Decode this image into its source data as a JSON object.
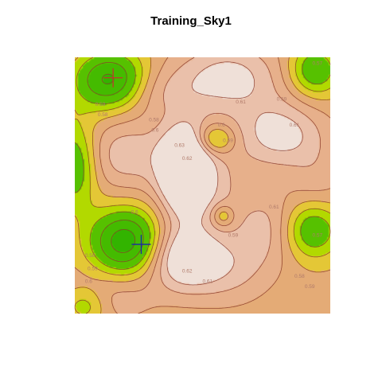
{
  "chart_data": {
    "type": "heatmap",
    "title": "Training_Sky1",
    "subtype": "filled contour map with contour lines",
    "x_range": [
      0,
      1
    ],
    "y_range": [
      0,
      1
    ],
    "color_scale": {
      "low": "#32b400",
      "mid": "#e6e600",
      "high_1": "#e2a86b",
      "high_2": "#eab59b",
      "max": "#f2f2f2",
      "contour_line_color": "#8b3a2a"
    },
    "value_range": [
      0.55,
      0.63
    ],
    "contour_labels": [
      {
        "label": "0.57",
        "x": 0.93,
        "y": 0.97
      },
      {
        "label": "0.59",
        "x": 0.79,
        "y": 0.83
      },
      {
        "label": "0.61",
        "x": 0.63,
        "y": 0.82
      },
      {
        "label": "0.61",
        "x": 0.84,
        "y": 0.73
      },
      {
        "label": "0.6",
        "x": 0.56,
        "y": 0.73
      },
      {
        "label": "0.59",
        "x": 0.58,
        "y": 0.67
      },
      {
        "label": "0.63",
        "x": 0.39,
        "y": 0.65
      },
      {
        "label": "0.62",
        "x": 0.42,
        "y": 0.6
      },
      {
        "label": "0.59",
        "x": 0.08,
        "y": 0.81
      },
      {
        "label": "0.58",
        "x": 0.09,
        "y": 0.77
      },
      {
        "label": "0.58",
        "x": 0.29,
        "y": 0.75
      },
      {
        "label": "0.6",
        "x": 0.3,
        "y": 0.71
      },
      {
        "label": "0.6",
        "x": 0.22,
        "y": 0.39
      },
      {
        "label": "0.61",
        "x": 0.76,
        "y": 0.41
      },
      {
        "label": "0.59",
        "x": 0.6,
        "y": 0.3
      },
      {
        "label": "0.57",
        "x": 0.93,
        "y": 0.3
      },
      {
        "label": "0.58",
        "x": 0.04,
        "y": 0.22
      },
      {
        "label": "0.59",
        "x": 0.05,
        "y": 0.17
      },
      {
        "label": "0.6",
        "x": 0.04,
        "y": 0.12
      },
      {
        "label": "0.62",
        "x": 0.42,
        "y": 0.16
      },
      {
        "label": "0.61",
        "x": 0.5,
        "y": 0.12
      },
      {
        "label": "0.58",
        "x": 0.86,
        "y": 0.14
      },
      {
        "label": "0.59",
        "x": 0.9,
        "y": 0.1
      }
    ],
    "peaks": [
      {
        "x": 0.43,
        "y": 0.56,
        "height": 1.0,
        "sx": 0.07,
        "sy": 0.12
      },
      {
        "x": 0.42,
        "y": 0.22,
        "height": 0.62,
        "sx": 0.1,
        "sy": 0.09
      },
      {
        "x": 0.6,
        "y": 0.92,
        "height": 0.48,
        "sx": 0.15,
        "sy": 0.1
      },
      {
        "x": 0.8,
        "y": 0.7,
        "height": 0.48,
        "sx": 0.12,
        "sy": 0.09
      },
      {
        "x": 0.76,
        "y": 0.34,
        "height": 0.28,
        "sx": 0.09,
        "sy": 0.1
      },
      {
        "x": 0.2,
        "y": 0.62,
        "height": 0.34,
        "sx": 0.12,
        "sy": 0.1
      },
      {
        "x": 0.6,
        "y": 0.18,
        "height": 0.3,
        "sx": 0.12,
        "sy": 0.1
      },
      {
        "x": 0.3,
        "y": 0.87,
        "height": 0.22,
        "sx": 0.12,
        "sy": 0.07
      },
      {
        "x": 0.95,
        "y": 0.5,
        "height": 0.18,
        "sx": 0.08,
        "sy": 0.12
      },
      {
        "x": 0.15,
        "y": 0.06,
        "height": 0.2,
        "sx": 0.12,
        "sy": 0.07
      },
      {
        "x": 0.55,
        "y": 0.5,
        "height": 0.22,
        "sx": 0.1,
        "sy": 0.1
      }
    ],
    "valleys": [
      {
        "x": 0.14,
        "y": 0.91,
        "depth": 0.85,
        "sx": 0.1,
        "sy": 0.08
      },
      {
        "x": 0.2,
        "y": 0.28,
        "depth": 0.9,
        "sx": 0.1,
        "sy": 0.09
      },
      {
        "x": 0.93,
        "y": 0.33,
        "depth": 0.6,
        "sx": 0.08,
        "sy": 0.08
      },
      {
        "x": 0.94,
        "y": 0.95,
        "depth": 0.55,
        "sx": 0.07,
        "sy": 0.07
      },
      {
        "x": 0.0,
        "y": 0.58,
        "depth": 0.55,
        "sx": 0.06,
        "sy": 0.12
      },
      {
        "x": 0.55,
        "y": 0.68,
        "depth": 0.45,
        "sx": 0.05,
        "sy": 0.04
      },
      {
        "x": 0.58,
        "y": 0.38,
        "depth": 0.35,
        "sx": 0.03,
        "sy": 0.03
      },
      {
        "x": 0.04,
        "y": 0.03,
        "depth": 0.35,
        "sx": 0.06,
        "sy": 0.05
      }
    ],
    "markers": [
      {
        "name": "red-cross",
        "x": 0.15,
        "y": 0.92,
        "color": "#c0392b"
      },
      {
        "name": "blue-cross",
        "x": 0.26,
        "y": 0.27,
        "color": "#1a2aa8"
      }
    ]
  }
}
